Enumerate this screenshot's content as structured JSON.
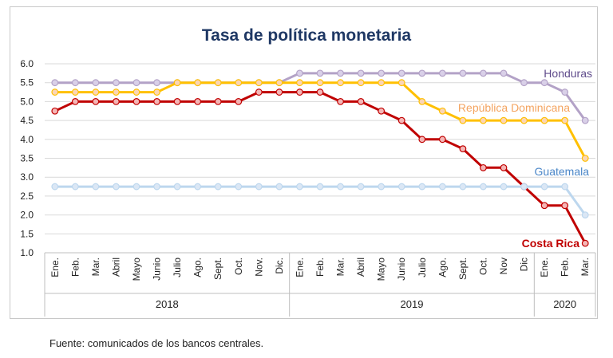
{
  "chart_data": {
    "type": "line",
    "title": "Tasa de política monetaria",
    "xlabel": "",
    "ylabel": "",
    "ylim": [
      1.0,
      6.0
    ],
    "yticks": [
      "6.0",
      "5.5",
      "5.0",
      "4.5",
      "4.0",
      "3.5",
      "3.0",
      "2.5",
      "2.0",
      "1.5",
      "1.0"
    ],
    "categories": [
      "Ene.",
      "Feb.",
      "Mar.",
      "Abril",
      "Mayo",
      "Junio",
      "Julio",
      "Ago.",
      "Sept.",
      "Oct.",
      "Nov.",
      "Dic.",
      "Ene.",
      "Feb.",
      "Mar.",
      "Abril",
      "Mayo",
      "Junio",
      "Julio",
      "Ago.",
      "Sept.",
      "Oct.",
      "Nov",
      "Dic",
      "Ene.",
      "Feb.",
      "Mar."
    ],
    "years": [
      {
        "label": "2018",
        "start": 0,
        "end": 11
      },
      {
        "label": "2019",
        "start": 12,
        "end": 23
      },
      {
        "label": "2020",
        "start": 24,
        "end": 26
      }
    ],
    "grid": true,
    "series": [
      {
        "name": "Honduras",
        "color": "#b3a2c7",
        "label_color": "#5f4b8b",
        "marker_fill": "#d9d0e8",
        "values": [
          5.5,
          5.5,
          5.5,
          5.5,
          5.5,
          5.5,
          5.5,
          5.5,
          5.5,
          5.5,
          5.5,
          5.5,
          5.75,
          5.75,
          5.75,
          5.75,
          5.75,
          5.75,
          5.75,
          5.75,
          5.75,
          5.75,
          5.75,
          5.5,
          5.5,
          5.25,
          4.5
        ]
      },
      {
        "name": "República Dominicana",
        "color": "#ffc000",
        "label_color": "#f4a460",
        "marker_fill": "#fbd5b5",
        "values": [
          5.25,
          5.25,
          5.25,
          5.25,
          5.25,
          5.25,
          5.5,
          5.5,
          5.5,
          5.5,
          5.5,
          5.5,
          5.5,
          5.5,
          5.5,
          5.5,
          5.5,
          5.5,
          5.0,
          4.75,
          4.5,
          4.5,
          4.5,
          4.5,
          4.5,
          4.5,
          3.5
        ]
      },
      {
        "name": "Costa Rica",
        "color": "#c00000",
        "label_color": "#c00000",
        "marker_fill": "#f4b6b6",
        "values": [
          4.75,
          5.0,
          5.0,
          5.0,
          5.0,
          5.0,
          5.0,
          5.0,
          5.0,
          5.0,
          5.25,
          5.25,
          5.25,
          5.25,
          5.0,
          5.0,
          4.75,
          4.5,
          4.0,
          4.0,
          3.75,
          3.25,
          3.25,
          2.75,
          2.25,
          2.25,
          1.25
        ]
      },
      {
        "name": "Guatemala",
        "color": "#bdd7ee",
        "label_color": "#4a86c8",
        "marker_fill": "#dbe7f5",
        "values": [
          2.75,
          2.75,
          2.75,
          2.75,
          2.75,
          2.75,
          2.75,
          2.75,
          2.75,
          2.75,
          2.75,
          2.75,
          2.75,
          2.75,
          2.75,
          2.75,
          2.75,
          2.75,
          2.75,
          2.75,
          2.75,
          2.75,
          2.75,
          2.75,
          2.75,
          2.75,
          2.0
        ]
      }
    ]
  },
  "source_text": "Fuente: comunicados de los bancos centrales."
}
